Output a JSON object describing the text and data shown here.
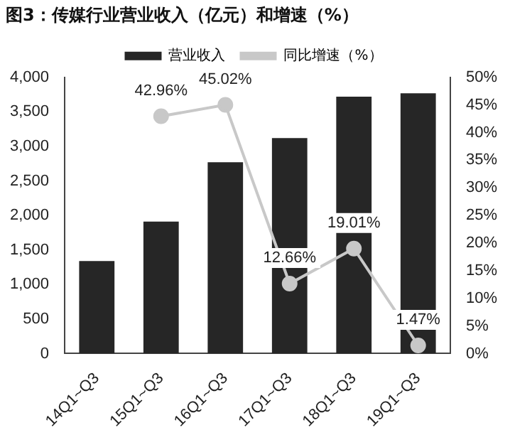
{
  "chart_data": {
    "type": "bar",
    "title": "图3：传媒行业营业收入（亿元）和增速（%）",
    "categories": [
      "14Q1~Q3",
      "15Q1~Q3",
      "16Q1~Q3",
      "17Q1~Q3",
      "18Q1~Q3",
      "19Q1~Q3"
    ],
    "series": [
      {
        "name": "营业收入",
        "color": "#262626",
        "values": [
          1340,
          1910,
          2770,
          3120,
          3720,
          3770
        ]
      },
      {
        "name": "同比增速（%）",
        "type": "line",
        "axis": "y2",
        "color": "#c8c8c8",
        "values": [
          null,
          42.96,
          45.02,
          12.66,
          19.01,
          1.47
        ],
        "value_labels": [
          null,
          "42.96%",
          "45.02%",
          "12.66%",
          "19.01%",
          "1.47%"
        ]
      }
    ],
    "ylim": [
      0,
      4000
    ],
    "yticks": [
      0,
      500,
      {
        "value": 1000,
        "label": "1,000"
      },
      {
        "value": 1500,
        "label": "1,500"
      },
      {
        "value": 2000,
        "label": "2,000"
      },
      {
        "value": 2500,
        "label": "2,500"
      },
      {
        "value": 3000,
        "label": "3,000"
      },
      {
        "value": 3500,
        "label": "3,500"
      },
      {
        "value": 4000,
        "label": "4,000"
      }
    ],
    "y2lim": [
      0,
      50
    ],
    "y2ticks": [
      {
        "value": 0,
        "label": "0%"
      },
      {
        "value": 5,
        "label": "5%"
      },
      {
        "value": 10,
        "label": "10%"
      },
      {
        "value": 15,
        "label": "15%"
      },
      {
        "value": 20,
        "label": "20%"
      },
      {
        "value": 25,
        "label": "25%"
      },
      {
        "value": 30,
        "label": "30%"
      },
      {
        "value": 35,
        "label": "35%"
      },
      {
        "value": 40,
        "label": "40%"
      },
      {
        "value": 45,
        "label": "45%"
      },
      {
        "value": 50,
        "label": "50%"
      }
    ],
    "legend": "top",
    "grid": false,
    "marker": "circle"
  }
}
